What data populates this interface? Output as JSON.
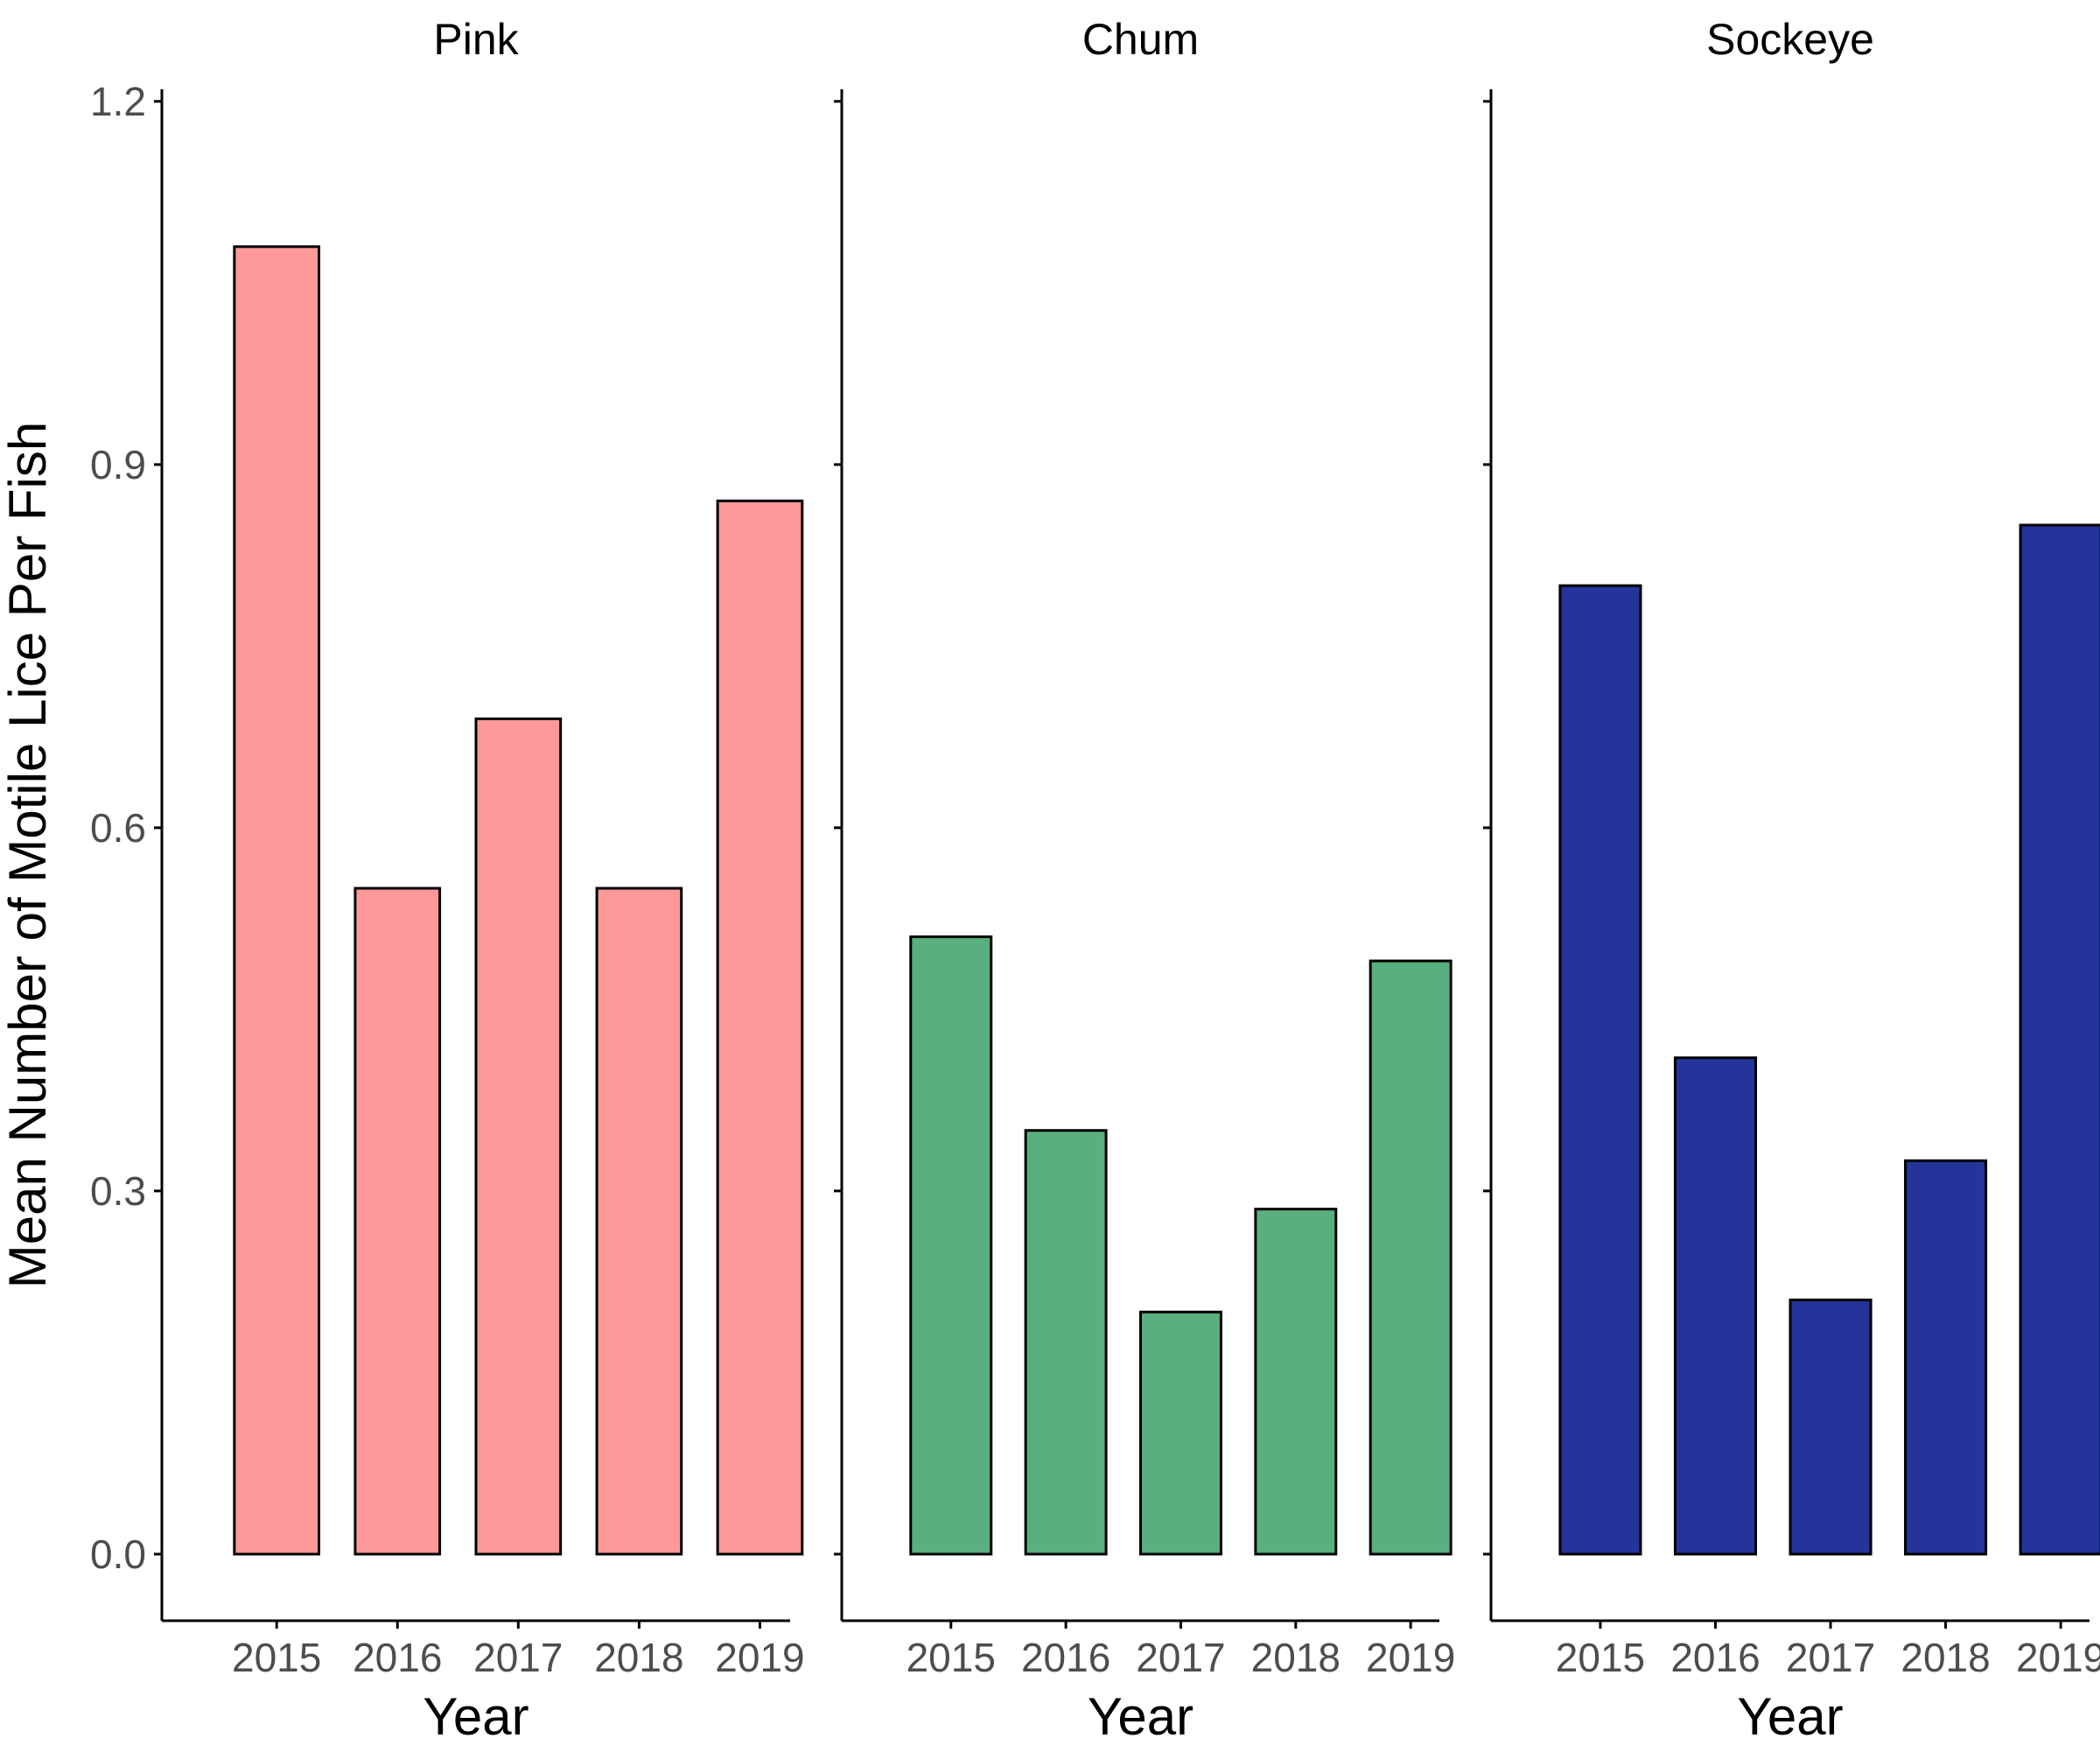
{
  "chart_data": {
    "type": "bar",
    "layout": "facet",
    "categories": [
      "2015",
      "2016",
      "2017",
      "2018",
      "2019"
    ],
    "ylabel": "Mean Number of Motile Lice Per Fish",
    "xlabel": "Year",
    "ylim": [
      -0.055,
      1.21
    ],
    "yticks": [
      0.0,
      0.3,
      0.6,
      0.9,
      1.2
    ],
    "ytick_labels": [
      "0.0",
      "0.3",
      "0.6",
      "0.9",
      "1.2"
    ],
    "grid": false,
    "legend": "none",
    "panels": [
      {
        "title": "Pink",
        "color": "#FF9999",
        "values": [
          1.08,
          0.55,
          0.69,
          0.55,
          0.87
        ]
      },
      {
        "title": "Chum",
        "color": "#59AF7D",
        "values": [
          0.51,
          0.35,
          0.2,
          0.285,
          0.49
        ]
      },
      {
        "title": "Sockeye",
        "color": "#24349A",
        "values": [
          0.8,
          0.41,
          0.21,
          0.325,
          0.85
        ]
      }
    ]
  }
}
